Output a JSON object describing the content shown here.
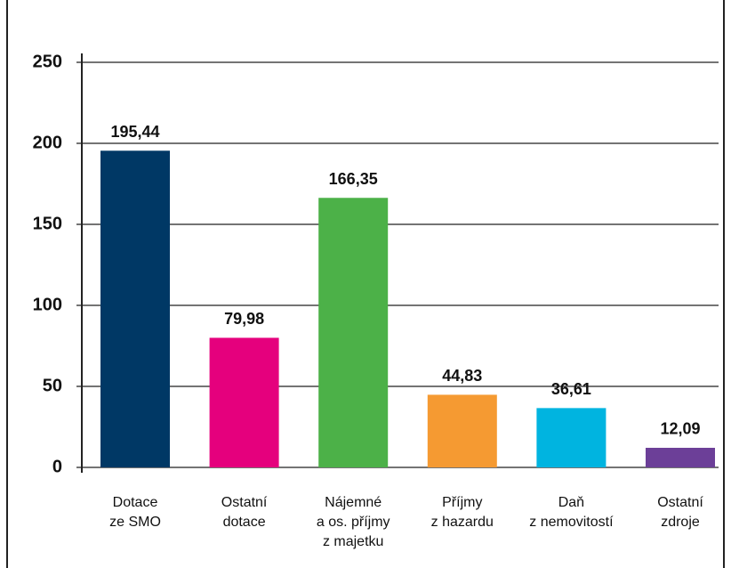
{
  "chart_data": {
    "type": "bar",
    "categories": [
      "Dotace\nze SMO",
      "Ostatní\ndotace",
      "Nájemné\na os. příjmy\nz majetku",
      "Příjmy\nz hazardu",
      "Daň\nz nemovitostí",
      "Ostatní\nzdroje"
    ],
    "values": [
      195.44,
      79.98,
      166.35,
      44.83,
      36.61,
      12.09
    ],
    "value_labels": [
      "195,44",
      "79,98",
      "166,35",
      "44,83",
      "36,61",
      "12,09"
    ],
    "colors": [
      "#003865",
      "#e5007d",
      "#4cb148",
      "#f59a32",
      "#00b4e0",
      "#6c3f98"
    ],
    "ylim": [
      0,
      250
    ],
    "yticks": [
      0,
      50,
      100,
      150,
      200,
      250
    ],
    "grid": true
  }
}
